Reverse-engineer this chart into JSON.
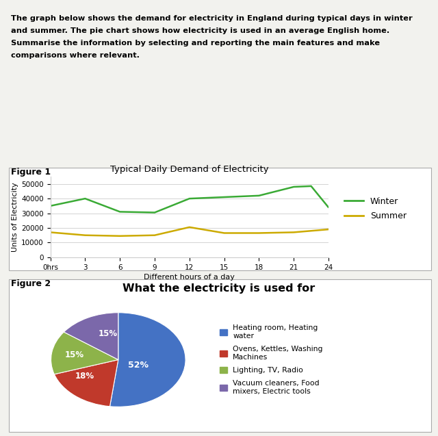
{
  "description_text_lines": [
    "The graph below shows the demand for electricity in England during typical days in winter",
    "and summer. The pie chart shows how electricity is used in an average English home.",
    "Summarise the information by selecting and reporting the main features and make",
    "comparisons where relevant."
  ],
  "fig1_label": "Figure 1",
  "fig1_title": "Typical Daily Demand of Electricity",
  "fig1_xlabel": "Different hours of a day",
  "fig1_ylabel": "Units of Electricity",
  "fig1_xticks": [
    0,
    3,
    6,
    9,
    12,
    15,
    18,
    21,
    24
  ],
  "fig1_xtick_labels": [
    "0hrs",
    "3",
    "6",
    "9",
    "12",
    "15",
    "18",
    "21",
    "24"
  ],
  "fig1_yticks": [
    0,
    10000,
    20000,
    30000,
    40000,
    50000
  ],
  "fig1_ylim": [
    0,
    55000
  ],
  "fig1_xlim": [
    0,
    24
  ],
  "winter_x": [
    0,
    3,
    6,
    9,
    12,
    15,
    18,
    21,
    22.5,
    24
  ],
  "winter_y": [
    35000,
    40000,
    31000,
    30500,
    40000,
    41000,
    42000,
    48000,
    48500,
    34000
  ],
  "summer_x": [
    0,
    3,
    6,
    9,
    12,
    15,
    18,
    21,
    24
  ],
  "summer_y": [
    17000,
    15000,
    14500,
    15000,
    20500,
    16500,
    16500,
    17000,
    19000
  ],
  "winter_color": "#3aaa35",
  "summer_color": "#ccaa00",
  "fig2_label": "Figure 2",
  "fig2_title": "What the electricity is used for",
  "pie_values": [
    52,
    18,
    15,
    15
  ],
  "pie_colors": [
    "#4472C4",
    "#C0392B",
    "#8DB34A",
    "#7B68AA"
  ],
  "pie_legend_labels": [
    "Heating room, Heating\nwater",
    "Ovens, Kettles, Washing\nMachines",
    "Lighting, TV, Radio",
    "Vacuum cleaners, Food\nmixers, Electric tools"
  ],
  "pie_pct_labels": [
    "52%",
    "18%",
    "15%",
    "15%"
  ],
  "background_color": "#f2f2ee",
  "box_facecolor": "#ffffff",
  "box_edgecolor": "#aaaaaa"
}
